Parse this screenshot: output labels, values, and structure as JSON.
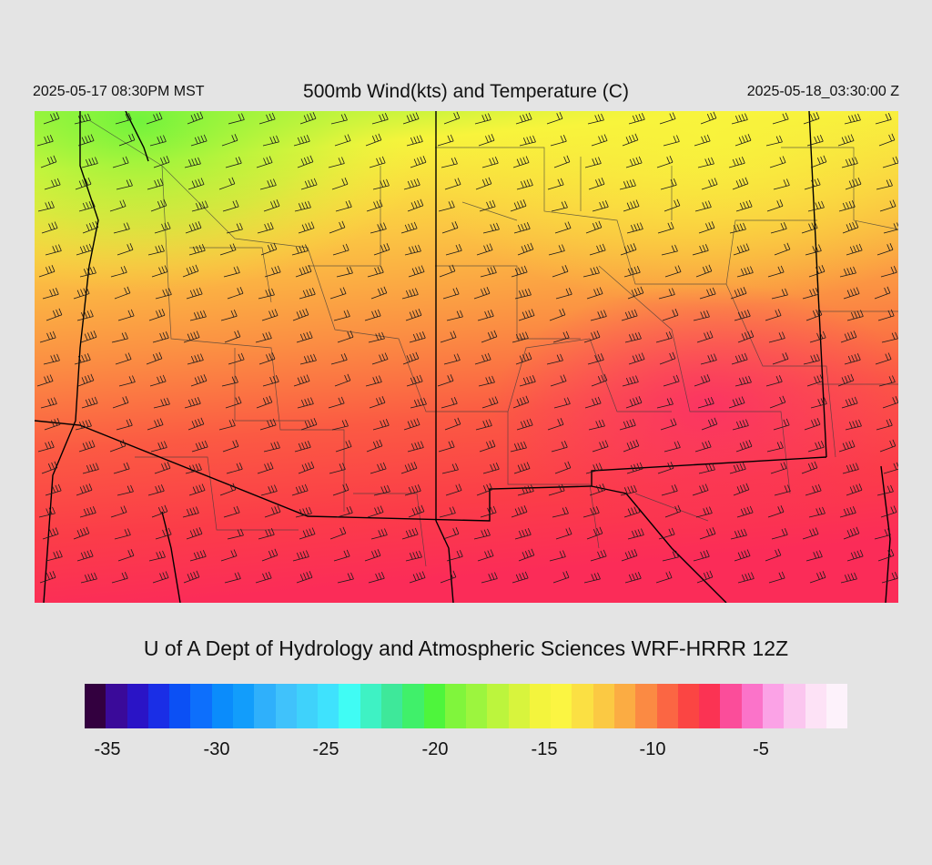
{
  "header": {
    "local_time": "2025-05-17 08:30PM MST",
    "title": "500mb Wind(kts) and Temperature (C)",
    "valid_time": "2025-05-18_03:30:00 Z"
  },
  "credit": "U of A Dept of Hydrology and Atmospheric Sciences WRF-HRRR 12Z",
  "colorbar": {
    "colors": [
      "#33003f",
      "#3a0a99",
      "#2a14c6",
      "#1a2ee6",
      "#0b50f5",
      "#0d6ffc",
      "#0b8cfb",
      "#129dfb",
      "#2fb0fb",
      "#40c2fb",
      "#3fd2fb",
      "#3fe2fd",
      "#40fcf4",
      "#3ef2c4",
      "#3ee89a",
      "#40f06a",
      "#4ef53c",
      "#80f53c",
      "#9cf53e",
      "#bcf53d",
      "#d8f43d",
      "#f3f43d",
      "#fbf542",
      "#fbe043",
      "#fbc943",
      "#fbac43",
      "#fb8a43",
      "#fb6643",
      "#fb4543",
      "#fb3353",
      "#fb4d9a",
      "#fb73c9",
      "#fba2e6",
      "#fbc6ef",
      "#fde2f6",
      "#fdf2fb"
    ],
    "tick_labels": [
      "-35",
      "-30",
      "-25",
      "-20",
      "-15",
      "-10",
      "-5"
    ]
  },
  "map_style": {
    "field_colors": {
      "green": "#7ff53c",
      "yellow": "#f8f13a",
      "orange": "#fbad43",
      "red": "#fb4040",
      "hot": "#fb2a5a"
    },
    "border_color": "#000000",
    "county_line_color": "#3a3a3a"
  }
}
